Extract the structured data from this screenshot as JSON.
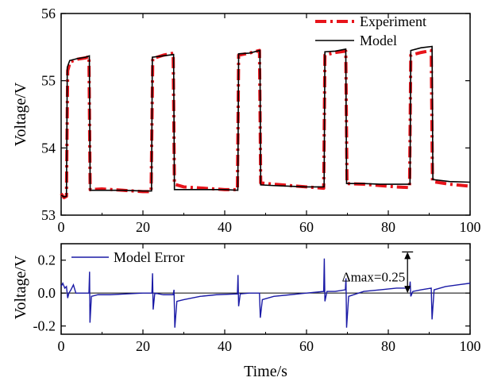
{
  "colors": {
    "experiment": "#e8141b",
    "model": "#000000",
    "error": "#1a1aa6",
    "zero_line": "#000000"
  },
  "chart_data": [
    {
      "type": "line",
      "title": "",
      "xlabel": "",
      "ylabel": "Voltage/V",
      "xlim": [
        0,
        100
      ],
      "ylim": [
        53,
        56
      ],
      "xticks": [
        "0",
        "20",
        "40",
        "60",
        "80",
        "100"
      ],
      "yticks": [
        "53",
        "54",
        "55",
        "56"
      ],
      "legend_position": "top-right",
      "series": [
        {
          "name": "Experiment",
          "style": "dash-dot",
          "points": [
            [
              0,
              53.32
            ],
            [
              0.7,
              53.26
            ],
            [
              1.3,
              53.28
            ],
            [
              1.6,
              55.15
            ],
            [
              2.2,
              55.28
            ],
            [
              4,
              55.32
            ],
            [
              6,
              55.34
            ],
            [
              6.8,
              55.36
            ],
            [
              7.1,
              53.38
            ],
            [
              10,
              53.39
            ],
            [
              15,
              53.37
            ],
            [
              20,
              53.35
            ],
            [
              22,
              53.35
            ],
            [
              22.4,
              55.33
            ],
            [
              25,
              55.38
            ],
            [
              27.4,
              55.41
            ],
            [
              27.7,
              53.46
            ],
            [
              30,
              53.42
            ],
            [
              35,
              53.4
            ],
            [
              40,
              53.38
            ],
            [
              43.1,
              53.38
            ],
            [
              43.4,
              55.38
            ],
            [
              46,
              55.41
            ],
            [
              48.5,
              55.45
            ],
            [
              48.8,
              53.48
            ],
            [
              52,
              53.46
            ],
            [
              56,
              53.44
            ],
            [
              60,
              53.42
            ],
            [
              64.2,
              53.4
            ],
            [
              64.5,
              55.38
            ],
            [
              67,
              55.42
            ],
            [
              69.6,
              55.44
            ],
            [
              69.9,
              53.47
            ],
            [
              74,
              53.46
            ],
            [
              78,
              53.44
            ],
            [
              82,
              53.42
            ],
            [
              85.2,
              53.41
            ],
            [
              85.5,
              55.38
            ],
            [
              88,
              55.42
            ],
            [
              90.5,
              55.45
            ],
            [
              90.8,
              53.5
            ],
            [
              95,
              53.46
            ],
            [
              100,
              53.43
            ]
          ]
        },
        {
          "name": "Model",
          "style": "solid",
          "points": [
            [
              0,
              53.3
            ],
            [
              0.7,
              53.27
            ],
            [
              1.3,
              53.28
            ],
            [
              1.5,
              55.2
            ],
            [
              2.1,
              55.3
            ],
            [
              4,
              55.33
            ],
            [
              6,
              55.35
            ],
            [
              6.9,
              55.37
            ],
            [
              7.1,
              53.37
            ],
            [
              10,
              53.37
            ],
            [
              15,
              53.37
            ],
            [
              20,
              53.36
            ],
            [
              22.1,
              53.36
            ],
            [
              22.3,
              55.35
            ],
            [
              25,
              55.37
            ],
            [
              27.5,
              55.39
            ],
            [
              27.7,
              53.38
            ],
            [
              30,
              53.38
            ],
            [
              35,
              53.38
            ],
            [
              40,
              53.38
            ],
            [
              43.2,
              53.37
            ],
            [
              43.4,
              55.4
            ],
            [
              46,
              55.41
            ],
            [
              48.6,
              55.45
            ],
            [
              48.8,
              53.45
            ],
            [
              52,
              53.44
            ],
            [
              56,
              53.43
            ],
            [
              60,
              53.42
            ],
            [
              64.3,
              53.42
            ],
            [
              64.5,
              55.43
            ],
            [
              67,
              55.44
            ],
            [
              69.6,
              55.47
            ],
            [
              69.8,
              53.47
            ],
            [
              74,
              53.47
            ],
            [
              78,
              53.46
            ],
            [
              82,
              53.46
            ],
            [
              85.3,
              53.46
            ],
            [
              85.5,
              55.45
            ],
            [
              88,
              55.49
            ],
            [
              90.7,
              55.51
            ],
            [
              90.9,
              53.53
            ],
            [
              95,
              53.5
            ],
            [
              100,
              53.49
            ]
          ]
        }
      ]
    },
    {
      "type": "line",
      "title": "",
      "xlabel": "Time/s",
      "ylabel": "Voltage/V",
      "xlim": [
        0,
        100
      ],
      "ylim": [
        -0.25,
        0.3
      ],
      "xticks": [
        "0",
        "20",
        "40",
        "60",
        "80",
        "100"
      ],
      "yticks": [
        "-0.2",
        "0.0",
        "0.2"
      ],
      "legend_position": "top-left",
      "annotation": {
        "text": "Δmax=0.25",
        "x": 84.7,
        "y_low": 0.0,
        "y_high": 0.25
      },
      "series": [
        {
          "name": "Model Error",
          "style": "solid",
          "points": [
            [
              0,
              0.04
            ],
            [
              0.4,
              0.06
            ],
            [
              0.9,
              0.03
            ],
            [
              1.3,
              0.04
            ],
            [
              1.6,
              -0.03
            ],
            [
              1.9,
              0.0
            ],
            [
              2.4,
              0.02
            ],
            [
              3,
              0.05
            ],
            [
              3.6,
              0.0
            ],
            [
              5,
              0.0
            ],
            [
              6.8,
              0.0
            ],
            [
              6.95,
              0.13
            ],
            [
              7.05,
              -0.18
            ],
            [
              7.4,
              -0.02
            ],
            [
              9,
              -0.01
            ],
            [
              12,
              -0.01
            ],
            [
              16,
              -0.005
            ],
            [
              20,
              0.0
            ],
            [
              22.2,
              0.0
            ],
            [
              22.35,
              0.12
            ],
            [
              22.5,
              -0.1
            ],
            [
              22.9,
              0.0
            ],
            [
              25,
              -0.01
            ],
            [
              27.4,
              -0.01
            ],
            [
              27.6,
              0.02
            ],
            [
              27.8,
              -0.21
            ],
            [
              28.3,
              -0.05
            ],
            [
              30,
              -0.04
            ],
            [
              34,
              -0.02
            ],
            [
              38,
              -0.01
            ],
            [
              43.1,
              -0.005
            ],
            [
              43.25,
              0.11
            ],
            [
              43.4,
              -0.08
            ],
            [
              43.8,
              -0.005
            ],
            [
              46,
              0.0
            ],
            [
              48.5,
              0.0
            ],
            [
              48.7,
              -0.15
            ],
            [
              49.2,
              -0.04
            ],
            [
              52,
              -0.02
            ],
            [
              56,
              -0.01
            ],
            [
              60,
              0.0
            ],
            [
              64.2,
              0.01
            ],
            [
              64.35,
              0.21
            ],
            [
              64.5,
              -0.05
            ],
            [
              65,
              0.01
            ],
            [
              67,
              0.01
            ],
            [
              69.5,
              0.02
            ],
            [
              69.65,
              0.09
            ],
            [
              69.8,
              -0.21
            ],
            [
              70.3,
              -0.02
            ],
            [
              74,
              0.01
            ],
            [
              78,
              0.02
            ],
            [
              82,
              0.03
            ],
            [
              85.2,
              0.03
            ],
            [
              85.35,
              0.07
            ],
            [
              85.5,
              -0.02
            ],
            [
              86,
              0.01
            ],
            [
              88,
              0.02
            ],
            [
              90.5,
              0.03
            ],
            [
              90.7,
              -0.16
            ],
            [
              91.2,
              0.02
            ],
            [
              94,
              0.04
            ],
            [
              97,
              0.05
            ],
            [
              100,
              0.06
            ]
          ]
        }
      ]
    }
  ]
}
